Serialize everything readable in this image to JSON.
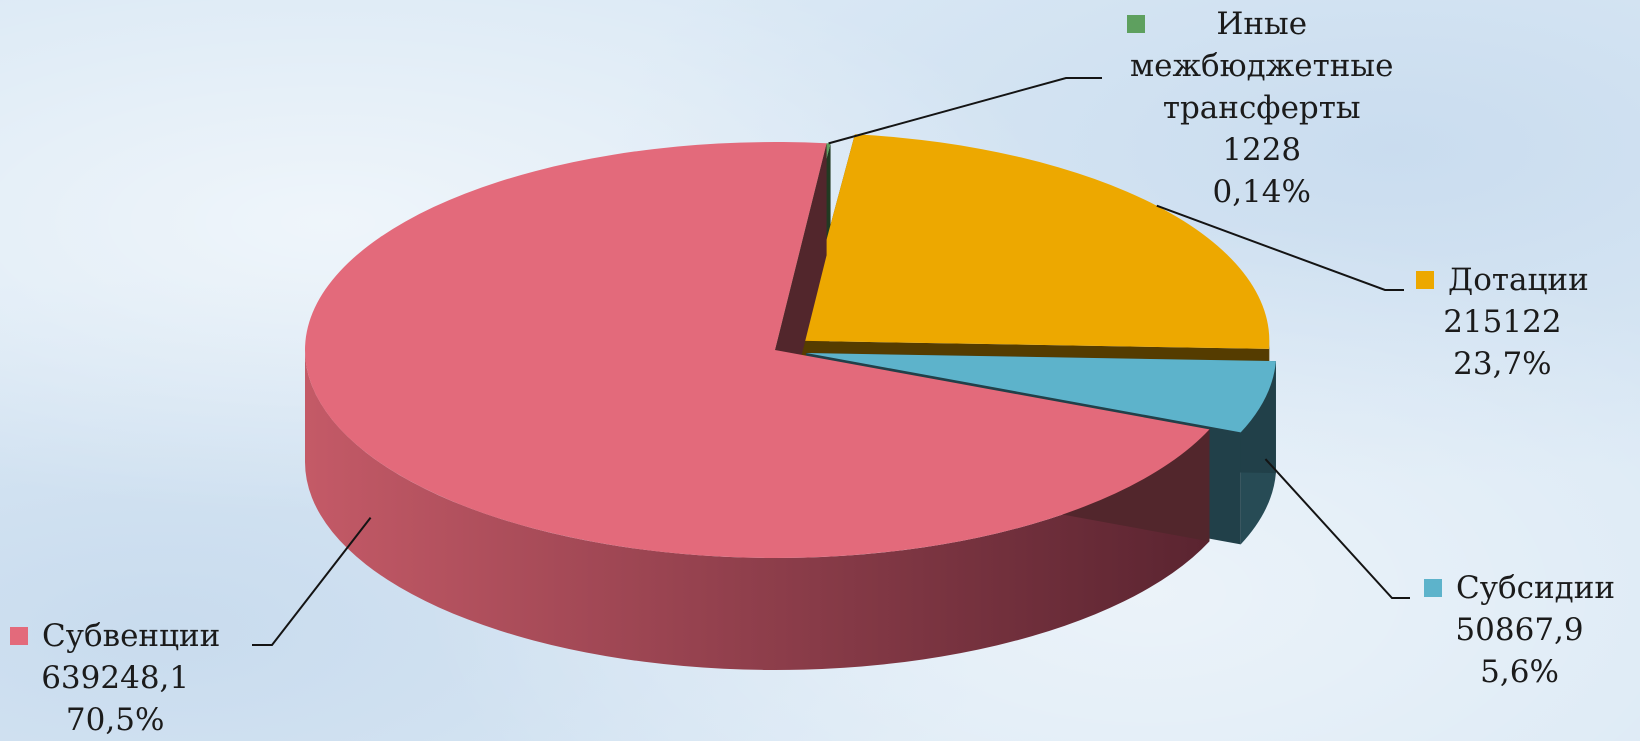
{
  "chart_data": {
    "type": "pie",
    "title": "",
    "three_d": true,
    "legend": "data labels beside slices with color squares",
    "series": [
      {
        "name_lines": [
          "Иные",
          "межбюджетные",
          "трансферты"
        ],
        "value": 1228,
        "value_label": "1228",
        "percent": 0.14,
        "percent_label": "0,14%",
        "color": "#5ea05f",
        "exploded": false
      },
      {
        "name_lines": [
          "Дотации"
        ],
        "value": 215122,
        "value_label": "215122",
        "percent": 23.7,
        "percent_label": "23,7%",
        "color": "#eda800",
        "exploded": true
      },
      {
        "name_lines": [
          "Субсидии"
        ],
        "value": 50867.9,
        "value_label": "50867,9",
        "percent": 5.6,
        "percent_label": "5,6%",
        "color": "#5db3cb",
        "exploded": true
      },
      {
        "name_lines": [
          "Субвенции"
        ],
        "value": 639248.1,
        "value_label": "639248,1",
        "percent": 70.5,
        "percent_label": "70,5%",
        "color": "#e36a7b",
        "exploded": false
      }
    ]
  }
}
